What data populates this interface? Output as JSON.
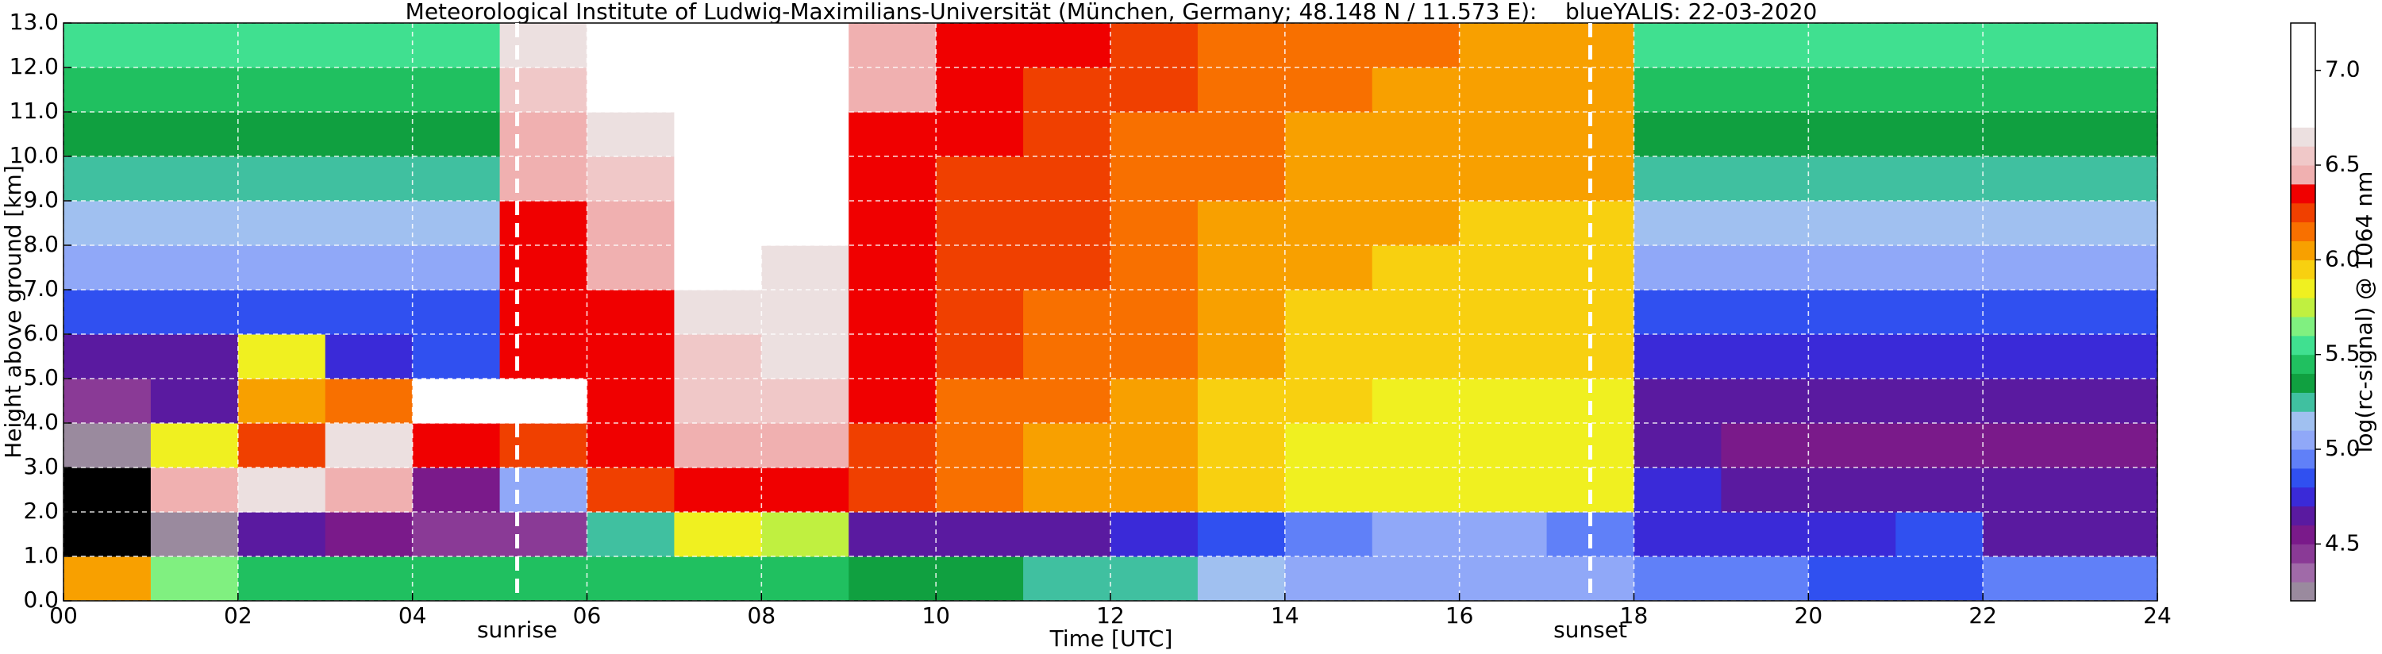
{
  "chart_data": {
    "type": "heatmap",
    "title": "Meteorological Institute of Ludwig-Maximilians-Universität (München, Germany; 48.148 N / 11.573 E):    blueYALIS: 22-03-2020",
    "xlabel": "Time [UTC]",
    "ylabel": "Height above ground [km]",
    "colorbar_label": "log(rc-signal) @ 1064 nm",
    "xlim": [
      0,
      24
    ],
    "ylim": [
      0,
      13
    ],
    "xticks": [
      {
        "value": 0,
        "label": "00"
      },
      {
        "value": 2,
        "label": "02"
      },
      {
        "value": 4,
        "label": "04"
      },
      {
        "value": 6,
        "label": "06"
      },
      {
        "value": 8,
        "label": "08"
      },
      10,
      12,
      14,
      16,
      18,
      20,
      22,
      24
    ],
    "yticks": [
      {
        "value": 0,
        "label": "0.0"
      },
      {
        "value": 1,
        "label": "1.0"
      },
      {
        "value": 2,
        "label": "2.0"
      },
      {
        "value": 3,
        "label": "3.0"
      },
      {
        "value": 4,
        "label": "4.0"
      },
      {
        "value": 5,
        "label": "5.0"
      },
      {
        "value": 6,
        "label": "6.0"
      },
      {
        "value": 7,
        "label": "7.0"
      },
      {
        "value": 8,
        "label": "8.0"
      },
      {
        "value": 9,
        "label": "9.0"
      },
      {
        "value": 10,
        "label": "10.0"
      },
      {
        "value": 11,
        "label": "11.0"
      },
      {
        "value": 12,
        "label": "12.0"
      },
      {
        "value": 13,
        "label": "13.0"
      }
    ],
    "grid": true,
    "z": [
      [
        6.0,
        5.6,
        5.4,
        5.4,
        5.4,
        5.4,
        5.4,
        5.4,
        5.4,
        5.3,
        5.3,
        5.2,
        5.2,
        5.1,
        5.0,
        5.0,
        5.0,
        5.0,
        4.9,
        4.9,
        4.8,
        4.8,
        4.9,
        4.9
      ],
      [
        4.0,
        4.2,
        4.6,
        4.5,
        4.4,
        4.4,
        5.2,
        5.8,
        5.7,
        4.6,
        4.6,
        4.6,
        4.7,
        4.8,
        4.9,
        5.0,
        5.0,
        4.9,
        4.7,
        4.7,
        4.7,
        4.8,
        4.6,
        4.6
      ],
      [
        4.0,
        6.4,
        6.6,
        6.4,
        4.5,
        5.0,
        6.2,
        6.3,
        6.3,
        6.2,
        6.1,
        6.0,
        6.0,
        5.9,
        5.8,
        5.8,
        5.8,
        5.8,
        4.7,
        4.6,
        4.6,
        4.6,
        4.6,
        4.6
      ],
      [
        4.2,
        5.8,
        6.2,
        6.6,
        6.3,
        6.2,
        6.3,
        6.4,
        6.4,
        6.2,
        6.1,
        6.0,
        6.0,
        5.9,
        5.8,
        5.8,
        5.8,
        5.8,
        4.6,
        4.5,
        4.5,
        4.5,
        4.5,
        4.5
      ],
      [
        4.4,
        4.6,
        6.0,
        6.1,
        6.7,
        6.7,
        6.3,
        6.5,
        6.5,
        6.3,
        6.1,
        6.1,
        6.0,
        5.9,
        5.9,
        5.8,
        5.8,
        5.8,
        4.6,
        4.6,
        4.6,
        4.6,
        4.6,
        4.6
      ],
      [
        4.6,
        4.6,
        5.8,
        4.7,
        4.8,
        6.3,
        6.3,
        6.5,
        6.6,
        6.3,
        6.2,
        6.1,
        6.1,
        6.0,
        5.9,
        5.9,
        5.9,
        5.9,
        4.7,
        4.7,
        4.7,
        4.7,
        4.7,
        4.7
      ],
      [
        4.8,
        4.8,
        4.8,
        4.8,
        4.8,
        6.3,
        6.3,
        6.6,
        6.6,
        6.3,
        6.2,
        6.1,
        6.1,
        6.0,
        5.9,
        5.9,
        5.9,
        5.9,
        4.8,
        4.8,
        4.8,
        4.8,
        4.8,
        4.8
      ],
      [
        5.0,
        5.0,
        5.0,
        5.0,
        5.0,
        6.3,
        6.4,
        6.7,
        6.6,
        6.3,
        6.2,
        6.2,
        6.1,
        6.0,
        6.0,
        5.9,
        5.9,
        5.9,
        5.0,
        5.0,
        5.0,
        5.0,
        5.0,
        5.0
      ],
      [
        5.1,
        5.1,
        5.1,
        5.1,
        5.1,
        6.3,
        6.4,
        6.7,
        6.7,
        6.3,
        6.2,
        6.2,
        6.1,
        6.0,
        6.0,
        6.0,
        5.9,
        5.9,
        5.1,
        5.1,
        5.1,
        5.1,
        5.1,
        5.1
      ],
      [
        5.2,
        5.2,
        5.2,
        5.2,
        5.2,
        6.4,
        6.5,
        6.8,
        6.7,
        6.3,
        6.2,
        6.2,
        6.1,
        6.1,
        6.0,
        6.0,
        6.0,
        6.0,
        5.2,
        5.2,
        5.2,
        5.2,
        5.2,
        5.2
      ],
      [
        5.3,
        5.3,
        5.3,
        5.3,
        5.3,
        6.4,
        6.6,
        6.8,
        6.7,
        6.3,
        6.3,
        6.2,
        6.1,
        6.1,
        6.0,
        6.0,
        6.0,
        6.0,
        5.3,
        5.3,
        5.3,
        5.3,
        5.3,
        5.3
      ],
      [
        5.4,
        5.4,
        5.4,
        5.4,
        5.4,
        6.5,
        6.7,
        6.9,
        6.8,
        6.4,
        6.3,
        6.2,
        6.2,
        6.1,
        6.1,
        6.0,
        6.0,
        6.0,
        5.4,
        5.4,
        5.4,
        5.4,
        5.4,
        5.4
      ],
      [
        5.5,
        5.5,
        5.5,
        5.5,
        5.5,
        6.6,
        6.8,
        6.9,
        6.8,
        6.4,
        6.3,
        6.3,
        6.2,
        6.1,
        6.1,
        6.1,
        6.0,
        6.0,
        5.5,
        5.5,
        5.5,
        5.5,
        5.5,
        5.5
      ]
    ],
    "colorscale": {
      "bounds": [
        4.2,
        4.3,
        4.4,
        4.5,
        4.6,
        4.7,
        4.8,
        4.9,
        5.0,
        5.1,
        5.2,
        5.3,
        5.4,
        5.5,
        5.6,
        5.7,
        5.8,
        5.9,
        6.0,
        6.1,
        6.2,
        6.3,
        6.4,
        6.5,
        6.6,
        6.7,
        7.25
      ],
      "colors": [
        "#9a8a9e",
        "#a06aa8",
        "#8a3a96",
        "#7a1a8a",
        "#5a1aa0",
        "#3a2ad8",
        "#3050f0",
        "#6080f8",
        "#90a8f8",
        "#a0c0f0",
        "#40c0a0",
        "#10a040",
        "#20c060",
        "#40e090",
        "#80f080",
        "#c0f040",
        "#f0f020",
        "#f8d010",
        "#f8a000",
        "#f87000",
        "#f04000",
        "#f00000",
        "#f0b0b0",
        "#f0c8c8",
        "#ece0e0",
        "#ffffff"
      ],
      "under_color": "#000000"
    },
    "colorbar_lim": [
      4.2,
      7.25
    ],
    "colorbar_ticks": [
      4.5,
      {
        "value": 5.0,
        "label": "5.0"
      },
      5.5,
      {
        "value": 6.0,
        "label": "6.0"
      },
      6.5,
      {
        "value": 7.0,
        "label": "7.0"
      }
    ],
    "annotations": [
      {
        "text": "sunrise",
        "x": 5.2
      },
      {
        "text": "sunset",
        "x": 17.5
      }
    ]
  }
}
